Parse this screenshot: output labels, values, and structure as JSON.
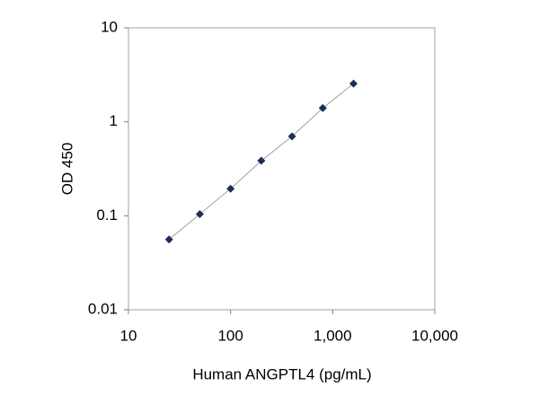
{
  "chart_data": {
    "type": "line",
    "x_label": "Human ANGPTL4 (pg/mL)",
    "y_label": "OD 450",
    "x": [
      25,
      50,
      100,
      200,
      400,
      800,
      1600
    ],
    "series": [
      {
        "color": "#1f2d5c",
        "line_color": "#a0a0a0",
        "values": [
          0.056,
          0.104,
          0.194,
          0.385,
          0.7,
          1.4,
          2.55
        ]
      }
    ],
    "xlim": [
      10,
      10000
    ],
    "xticks": [
      10,
      100,
      {
        "value": 1000,
        "label": "1,000"
      },
      {
        "value": 10000,
        "label": "10,000"
      }
    ],
    "ylim": [
      0.01,
      10
    ],
    "yticks": [
      0.01,
      0.1,
      1,
      10
    ],
    "x_log": true,
    "y_log": true,
    "grid": false
  }
}
